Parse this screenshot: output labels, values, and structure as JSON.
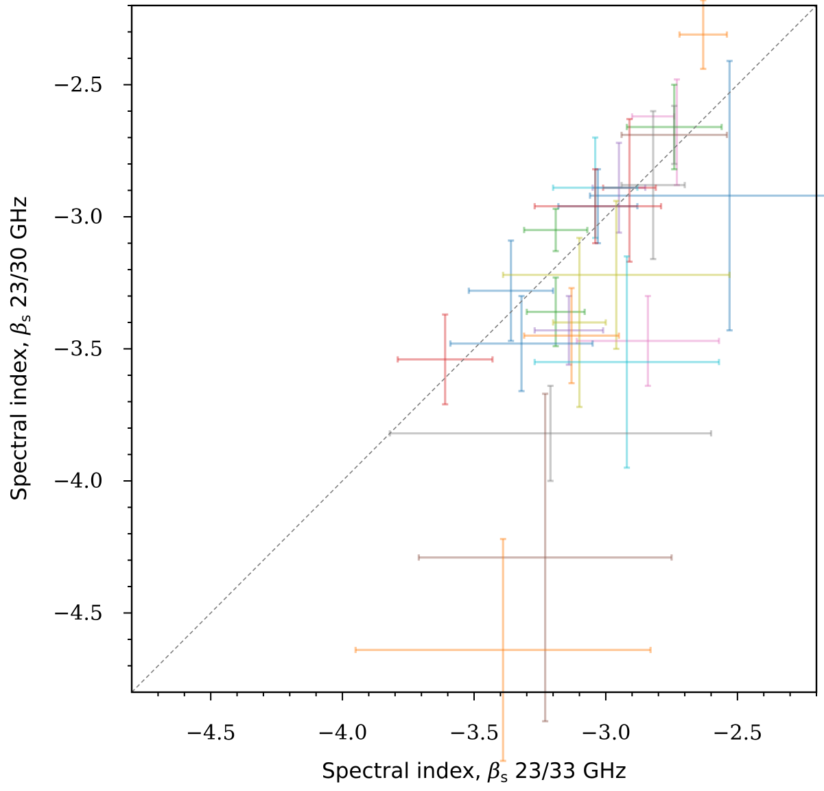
{
  "chart_data": {
    "type": "scatter",
    "xlabel": "Spectral index, βs 23/33 GHz",
    "ylabel": "Spectral index, βs 23/30 GHz",
    "xlabel_parts": {
      "pre": "Spectral index, ",
      "greek": "β",
      "sub": "s",
      "post": " 23/33 GHz"
    },
    "ylabel_parts": {
      "pre": "Spectral index, ",
      "greek": "β",
      "sub": "s",
      "post": " 23/30 GHz"
    },
    "xlim": [
      -4.8,
      -2.2
    ],
    "ylim": [
      -4.8,
      -2.2
    ],
    "x_ticks": [
      -4.5,
      -4.0,
      -3.5,
      -3.0,
      -2.5
    ],
    "y_ticks": [
      -4.5,
      -4.0,
      -3.5,
      -3.0,
      -2.5
    ],
    "x_tick_labels": [
      "−4.5",
      "−4.0",
      "−3.5",
      "−3.0",
      "−2.5"
    ],
    "y_tick_labels": [
      "−4.5",
      "−4.0",
      "−3.5",
      "−3.0",
      "−2.5"
    ],
    "minor_tick_step": 0.1,
    "grid": false,
    "reference_line": "y = x",
    "colors": {
      "blue": "#1f77b4",
      "orange": "#ff7f0e",
      "green": "#2ca02c",
      "red": "#d62728",
      "purple": "#9467bd",
      "brown": "#8c564b",
      "pink": "#e377c2",
      "gray": "#7f7f7f",
      "olive": "#bcbd22",
      "cyan": "#17becf",
      "reference": "#808080"
    },
    "points": [
      {
        "x": -2.63,
        "y": -2.31,
        "xerr": [
          0.09,
          0.09
        ],
        "yerr": [
          0.13,
          0.13
        ],
        "color": "orange"
      },
      {
        "x": -2.53,
        "y": -2.92,
        "xerr": [
          0.53,
          0.53
        ],
        "yerr": [
          0.51,
          0.51
        ],
        "color": "blue"
      },
      {
        "x": -2.82,
        "y": -2.62,
        "xerr": [
          0.08,
          0.08
        ],
        "yerr": [
          0.0,
          0.0
        ],
        "color": "pink"
      },
      {
        "x": -2.73,
        "y": -2.68,
        "xerr": [
          0.0,
          0.0
        ],
        "yerr": [
          0.2,
          0.2
        ],
        "color": "pink"
      },
      {
        "x": -2.74,
        "y": -2.66,
        "xerr": [
          0.18,
          0.18
        ],
        "yerr": [
          0.16,
          0.16
        ],
        "color": "green"
      },
      {
        "x": -2.74,
        "y": -2.69,
        "xerr": [
          0.0,
          0.0
        ],
        "yerr": [
          0.11,
          0.11
        ],
        "color": "gray"
      },
      {
        "x": -2.74,
        "y": -2.69,
        "xerr": [
          0.2,
          0.2
        ],
        "yerr": [
          0.0,
          0.0
        ],
        "color": "brown"
      },
      {
        "x": -2.91,
        "y": -2.9,
        "xerr": [
          0.0,
          0.0
        ],
        "yerr": [
          0.27,
          0.27
        ],
        "color": "red"
      },
      {
        "x": -2.82,
        "y": -2.88,
        "xerr": [
          0.12,
          0.12
        ],
        "yerr": [
          0.28,
          0.28
        ],
        "color": "gray"
      },
      {
        "x": -2.95,
        "y": -2.89,
        "xerr": [
          0.1,
          0.1
        ],
        "yerr": [
          0.17,
          0.17
        ],
        "color": "purple"
      },
      {
        "x": -2.91,
        "y": -2.89,
        "xerr": [
          0.1,
          0.1
        ],
        "yerr": [
          0.0,
          0.0
        ],
        "color": "red"
      },
      {
        "x": -3.04,
        "y": -2.89,
        "xerr": [
          0.16,
          0.16
        ],
        "yerr": [
          0.19,
          0.19
        ],
        "color": "cyan"
      },
      {
        "x": -3.03,
        "y": -2.96,
        "xerr": [
          0.15,
          0.15
        ],
        "yerr": [
          0.14,
          0.14
        ],
        "color": "blue"
      },
      {
        "x": -3.04,
        "y": -2.96,
        "xerr": [
          0.0,
          0.0
        ],
        "yerr": [
          0.14,
          0.14
        ],
        "color": "red"
      },
      {
        "x": -3.03,
        "y": -2.96,
        "xerr": [
          0.24,
          0.24
        ],
        "yerr": [
          0.0,
          0.0
        ],
        "color": "red"
      },
      {
        "x": -3.19,
        "y": -3.05,
        "xerr": [
          0.12,
          0.12
        ],
        "yerr": [
          0.08,
          0.08
        ],
        "color": "green"
      },
      {
        "x": -3.36,
        "y": -3.28,
        "xerr": [
          0.16,
          0.16
        ],
        "yerr": [
          0.19,
          0.19
        ],
        "color": "blue"
      },
      {
        "x": -2.96,
        "y": -3.22,
        "xerr": [
          0.43,
          0.43
        ],
        "yerr": [
          0.28,
          0.28
        ],
        "color": "olive"
      },
      {
        "x": -3.19,
        "y": -3.36,
        "xerr": [
          0.11,
          0.11
        ],
        "yerr": [
          0.13,
          0.13
        ],
        "color": "green"
      },
      {
        "x": -3.1,
        "y": -3.4,
        "xerr": [
          0.1,
          0.1
        ],
        "yerr": [
          0.32,
          0.32
        ],
        "color": "olive"
      },
      {
        "x": -3.14,
        "y": -3.43,
        "xerr": [
          0.13,
          0.13
        ],
        "yerr": [
          0.13,
          0.13
        ],
        "color": "purple"
      },
      {
        "x": -3.13,
        "y": -3.45,
        "xerr": [
          0.18,
          0.18
        ],
        "yerr": [
          0.18,
          0.18
        ],
        "color": "orange"
      },
      {
        "x": -2.84,
        "y": -3.47,
        "xerr": [
          0.27,
          0.27
        ],
        "yerr": [
          0.17,
          0.17
        ],
        "color": "pink"
      },
      {
        "x": -3.32,
        "y": -3.48,
        "xerr": [
          0.27,
          0.27
        ],
        "yerr": [
          0.18,
          0.18
        ],
        "color": "blue"
      },
      {
        "x": -2.92,
        "y": -3.55,
        "xerr": [
          0.35,
          0.35
        ],
        "yerr": [
          0.4,
          0.4
        ],
        "color": "cyan"
      },
      {
        "x": -3.61,
        "y": -3.54,
        "xerr": [
          0.18,
          0.18
        ],
        "yerr": [
          0.17,
          0.17
        ],
        "color": "red"
      },
      {
        "x": -3.21,
        "y": -3.82,
        "xerr": [
          0.61,
          0.61
        ],
        "yerr": [
          0.18,
          0.18
        ],
        "color": "gray"
      },
      {
        "x": -3.23,
        "y": -4.29,
        "xerr": [
          0.48,
          0.48
        ],
        "yerr": [
          0.62,
          0.62
        ],
        "color": "brown"
      },
      {
        "x": -3.39,
        "y": -4.64,
        "xerr": [
          0.56,
          0.56
        ],
        "yerr": [
          0.42,
          0.42
        ],
        "color": "orange"
      }
    ]
  }
}
